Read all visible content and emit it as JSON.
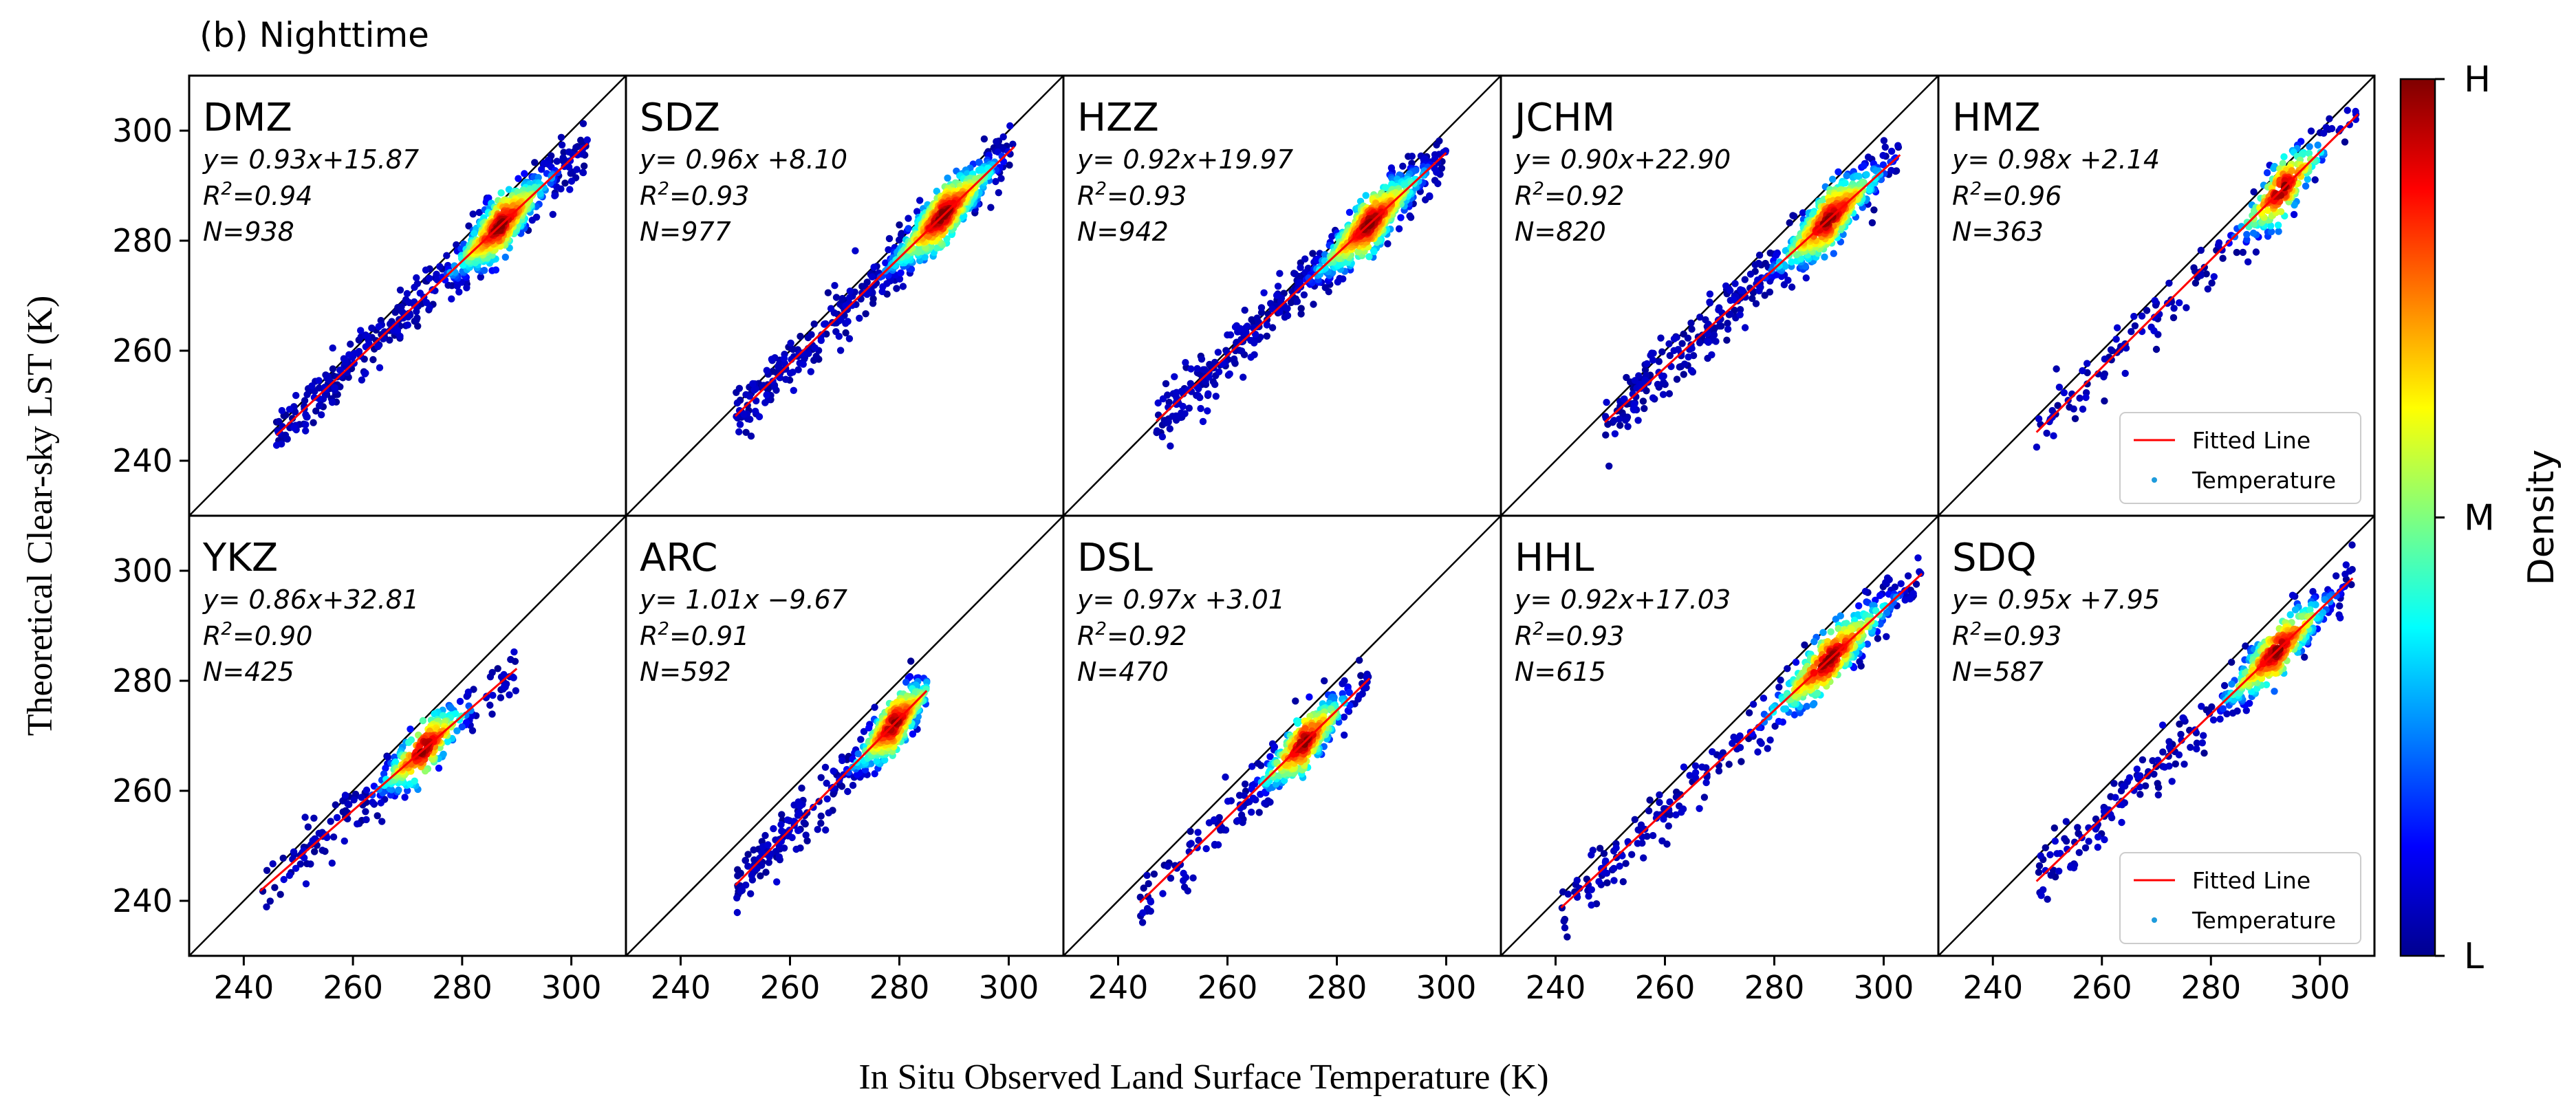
{
  "figure_title": "(b) Nighttime",
  "ylabel": "Theoretical Clear-sky LST (K)",
  "xlabel": "In Situ Observed Land Surface Temperature (K)",
  "colorbar": {
    "label": "Density",
    "ticks": [
      "H",
      "M",
      "L"
    ],
    "colors": [
      "#00008f",
      "#0000ff",
      "#007fff",
      "#00ffff",
      "#7fff7f",
      "#ffff00",
      "#ff7f00",
      "#ff0000",
      "#7f0000"
    ]
  },
  "legend": {
    "line_label": "Fitted Line",
    "point_label": "Temperature",
    "line_color": "#ff0000",
    "point_color": "#1e9bdc"
  },
  "chart_data": [
    {
      "type": "scatter",
      "site": "DMZ",
      "eq": "y= 0.93x+15.87",
      "r2": "0.94",
      "n_label": "N=938",
      "slope": 0.93,
      "intercept": 15.87,
      "n": 938,
      "x_range": [
        246,
        303
      ],
      "center": 287,
      "spread": 5.5,
      "xlim": [
        230,
        310
      ],
      "ylim": [
        230,
        310
      ],
      "xticks": [
        240,
        260,
        280,
        300
      ],
      "yticks": [
        240,
        260,
        280,
        300
      ],
      "legend": false
    },
    {
      "type": "scatter",
      "site": "SDZ",
      "eq": "y= 0.96x +8.10",
      "r2": "0.93",
      "n_label": "N=977",
      "slope": 0.96,
      "intercept": 8.1,
      "n": 977,
      "x_range": [
        250,
        301
      ],
      "center": 288,
      "spread": 6,
      "xlim": [
        230,
        310
      ],
      "ylim": [
        230,
        310
      ],
      "xticks": [
        240,
        260,
        280,
        300
      ],
      "yticks": [
        240,
        260,
        280,
        300
      ],
      "legend": false
    },
    {
      "type": "scatter",
      "site": "HZZ",
      "eq": "y= 0.92x+19.97",
      "r2": "0.93",
      "n_label": "N=942",
      "slope": 0.92,
      "intercept": 19.97,
      "n": 942,
      "x_range": [
        247,
        300
      ],
      "center": 286,
      "spread": 6,
      "xlim": [
        230,
        310
      ],
      "ylim": [
        230,
        310
      ],
      "xticks": [
        240,
        260,
        280,
        300
      ],
      "yticks": [
        240,
        260,
        280,
        300
      ],
      "legend": false
    },
    {
      "type": "scatter",
      "site": "JCHM",
      "eq": "y= 0.90x+22.90",
      "r2": "0.92",
      "n_label": "N=820",
      "slope": 0.9,
      "intercept": 22.9,
      "n": 820,
      "x_range": [
        249,
        303
      ],
      "center": 290,
      "spread": 6,
      "xlim": [
        230,
        310
      ],
      "ylim": [
        230,
        310
      ],
      "xticks": [
        240,
        260,
        280,
        300
      ],
      "yticks": [
        240,
        260,
        280,
        300
      ],
      "legend": false
    },
    {
      "type": "scatter",
      "site": "HMZ",
      "eq": "y= 0.98x +2.14",
      "r2": "0.96",
      "n_label": "N=363",
      "slope": 0.98,
      "intercept": 2.14,
      "n": 363,
      "x_range": [
        248,
        307
      ],
      "center": 293,
      "spread": 5,
      "xlim": [
        230,
        310
      ],
      "ylim": [
        230,
        310
      ],
      "xticks": [
        240,
        260,
        280,
        300
      ],
      "yticks": [
        240,
        260,
        280,
        300
      ],
      "legend": true
    },
    {
      "type": "scatter",
      "site": "YKZ",
      "eq": "y= 0.86x+32.81",
      "r2": "0.90",
      "n_label": "N=425",
      "slope": 0.86,
      "intercept": 32.81,
      "n": 425,
      "x_range": [
        243,
        290
      ],
      "center": 273,
      "spread": 5,
      "xlim": [
        230,
        310
      ],
      "ylim": [
        230,
        310
      ],
      "xticks": [
        240,
        260,
        280,
        300
      ],
      "yticks": [
        240,
        260,
        280,
        300
      ],
      "legend": false
    },
    {
      "type": "scatter",
      "site": "ARC",
      "eq": "y= 1.01x −9.67",
      "r2": "0.91",
      "n_label": "N=592",
      "slope": 1.01,
      "intercept": -9.67,
      "n": 592,
      "x_range": [
        250,
        285
      ],
      "center": 279,
      "spread": 4.5,
      "xlim": [
        230,
        310
      ],
      "ylim": [
        230,
        310
      ],
      "xticks": [
        240,
        260,
        280,
        300
      ],
      "yticks": [
        240,
        260,
        280,
        300
      ],
      "legend": false
    },
    {
      "type": "scatter",
      "site": "DSL",
      "eq": "y= 0.97x +3.01",
      "r2": "0.92",
      "n_label": "N=470",
      "slope": 0.97,
      "intercept": 3.01,
      "n": 470,
      "x_range": [
        244,
        286
      ],
      "center": 274,
      "spread": 5,
      "xlim": [
        230,
        310
      ],
      "ylim": [
        230,
        310
      ],
      "xticks": [
        240,
        260,
        280,
        300
      ],
      "yticks": [
        240,
        260,
        280,
        300
      ],
      "legend": false
    },
    {
      "type": "scatter",
      "site": "HHL",
      "eq": "y= 0.92x+17.03",
      "r2": "0.93",
      "n_label": "N=615",
      "slope": 0.92,
      "intercept": 17.03,
      "n": 615,
      "x_range": [
        241,
        307
      ],
      "center": 290,
      "spread": 7,
      "xlim": [
        230,
        310
      ],
      "ylim": [
        230,
        310
      ],
      "xticks": [
        240,
        260,
        280,
        300
      ],
      "yticks": [
        240,
        260,
        280,
        300
      ],
      "legend": false
    },
    {
      "type": "scatter",
      "site": "SDQ",
      "eq": "y= 0.95x +7.95",
      "r2": "0.93",
      "n_label": "N=587",
      "slope": 0.95,
      "intercept": 7.95,
      "n": 587,
      "x_range": [
        248,
        306
      ],
      "center": 292,
      "spread": 6,
      "xlim": [
        230,
        310
      ],
      "ylim": [
        230,
        310
      ],
      "xticks": [
        240,
        260,
        280,
        300
      ],
      "yticks": [
        240,
        260,
        280,
        300
      ],
      "legend": true
    }
  ]
}
